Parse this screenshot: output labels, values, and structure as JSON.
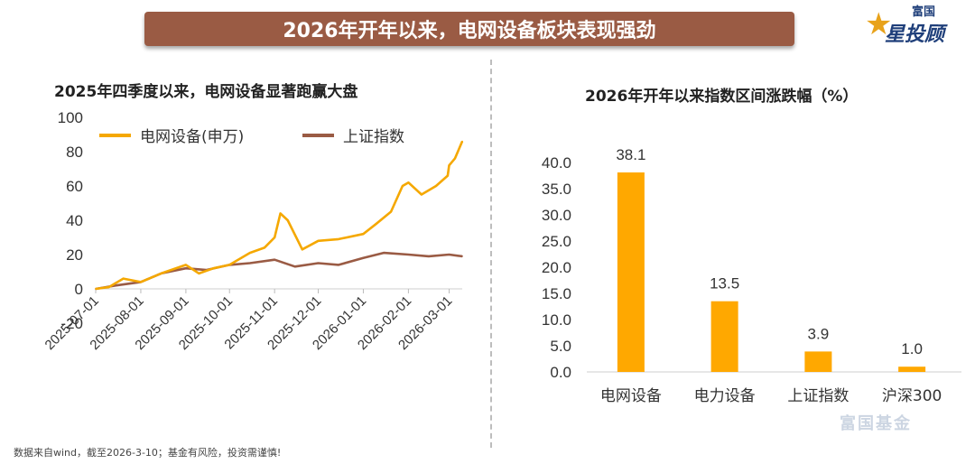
{
  "header": {
    "title": "2026年开年以来，电网设备板块表现强劲",
    "logo_small": "富国",
    "logo_main": "星投顾"
  },
  "watermark": "富国基金",
  "footnote": "数据来自wind，截至2026-3-10；基金有风险，投资需谨慎!",
  "colors": {
    "banner": "#9a5b44",
    "grid_series": "#f5a800",
    "index_series": "#9a5b44",
    "bar": "#ffa800"
  },
  "chart_data": [
    {
      "type": "line",
      "title": "2025年四季度以来，电网设备显著跑赢大盘",
      "xlabel": "",
      "ylabel": "",
      "ylim": [
        -20,
        100
      ],
      "yticks": [
        "100",
        "80",
        "60",
        "40",
        "20",
        "0",
        "-20"
      ],
      "x_ticks": [
        "2025-07-01",
        "2025-08-01",
        "2025-09-01",
        "2025-10-01",
        "2025-11-01",
        "2025-12-01",
        "2026-01-01",
        "2026-02-01",
        "2026-03-01"
      ],
      "legend": "top-left",
      "series": [
        {
          "name": "电网设备(申万)",
          "color": "#f5a800",
          "x": [
            "2025-07-01",
            "2025-07-10",
            "2025-07-20",
            "2025-08-01",
            "2025-08-15",
            "2025-09-01",
            "2025-09-10",
            "2025-09-20",
            "2025-10-01",
            "2025-10-15",
            "2025-10-25",
            "2025-11-01",
            "2025-11-05",
            "2025-11-10",
            "2025-11-20",
            "2025-12-01",
            "2025-12-15",
            "2026-01-01",
            "2026-01-10",
            "2026-01-20",
            "2026-01-28",
            "2026-02-01",
            "2026-02-10",
            "2026-02-20",
            "2026-02-28",
            "2026-03-01",
            "2026-03-05",
            "2026-03-10"
          ],
          "values": [
            0,
            1,
            6,
            4,
            9,
            14,
            9,
            12,
            14,
            21,
            24,
            30,
            44,
            40,
            23,
            28,
            29,
            32,
            38,
            45,
            60,
            62,
            55,
            60,
            66,
            72,
            76,
            86
          ]
        },
        {
          "name": "上证指数",
          "color": "#9a5b44",
          "x": [
            "2025-07-01",
            "2025-07-15",
            "2025-08-01",
            "2025-08-15",
            "2025-09-01",
            "2025-09-15",
            "2025-10-01",
            "2025-10-15",
            "2025-11-01",
            "2025-11-15",
            "2025-12-01",
            "2025-12-15",
            "2026-01-01",
            "2026-01-15",
            "2026-02-01",
            "2026-02-15",
            "2026-03-01",
            "2026-03-10"
          ],
          "values": [
            0,
            2,
            4,
            9,
            12,
            11,
            14,
            15,
            17,
            13,
            15,
            14,
            18,
            21,
            20,
            19,
            20,
            19
          ]
        }
      ]
    },
    {
      "type": "bar",
      "title": "2026年开年以来指数区间涨跌幅（%）",
      "xlabel": "",
      "ylabel": "",
      "ylim": [
        0,
        40
      ],
      "yticks": [
        "40.0",
        "35.0",
        "30.0",
        "25.0",
        "20.0",
        "15.0",
        "10.0",
        "5.0",
        "0.0"
      ],
      "categories": [
        "电网设备",
        "电力设备",
        "上证指数",
        "沪深300"
      ],
      "values": [
        38.1,
        13.5,
        3.9,
        1.0
      ],
      "value_labels": [
        "38.1",
        "13.5",
        "3.9",
        "1.0"
      ],
      "color": "#ffa800"
    }
  ]
}
